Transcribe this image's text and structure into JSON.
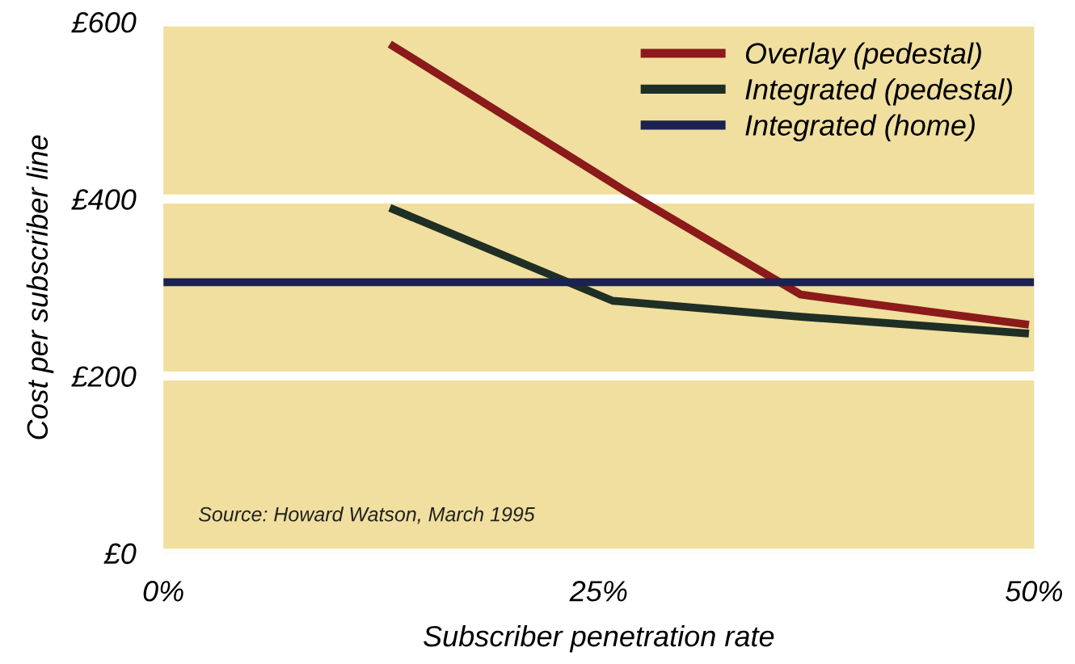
{
  "chart_data": {
    "type": "line",
    "xlabel": "Subscriber penetration rate",
    "ylabel": "Cost per subscriber line",
    "xlim": [
      0,
      50
    ],
    "xticks": [
      {
        "value": 0,
        "label": "0%"
      },
      {
        "value": 25,
        "label": "25%"
      },
      {
        "value": 50,
        "label": "50%"
      }
    ],
    "ylim": [
      0,
      600
    ],
    "yticks": [
      {
        "value": 0,
        "label": "£0"
      },
      {
        "value": 200,
        "label": "£200"
      },
      {
        "value": 400,
        "label": "£400"
      },
      {
        "value": 600,
        "label": "£600"
      }
    ],
    "grid": "y",
    "legend": "top right",
    "line_style": "solid",
    "marker": "none",
    "series": [
      {
        "name": "Overlay (pedestal)",
        "color": "#8b1a1a",
        "x": [
          13,
          26.6,
          36.6,
          49.7
        ],
        "values": [
          575,
          408,
          292,
          258
        ]
      },
      {
        "name": "Integrated (pedestal)",
        "color": "#1f2f25",
        "x": [
          13,
          25.8,
          36.6,
          49.7
        ],
        "values": [
          390,
          285,
          267,
          248
        ]
      },
      {
        "name": "Integrated (home)",
        "color": "#1c2250",
        "x": [
          0,
          50
        ],
        "values": [
          306,
          306
        ]
      }
    ],
    "annotations": [
      "Source: Howard Watson, March 1995"
    ]
  }
}
